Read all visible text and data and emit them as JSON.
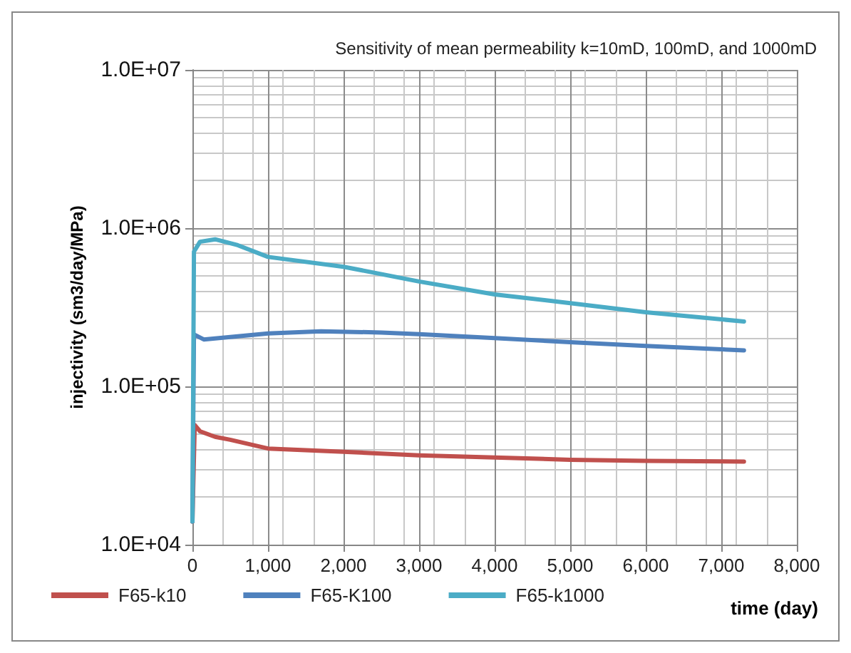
{
  "chart_data": {
    "type": "line",
    "title": "Sensitivity of mean permeability k=10mD, 100mD, and 1000mD",
    "xlabel": "time (day)",
    "ylabel": "injectivity (sm3/day/MPa)",
    "series": [
      {
        "name": "F65-k10",
        "color": "#c0504d",
        "x": [
          0,
          30,
          100,
          300,
          500,
          1000,
          1500,
          2000,
          3000,
          4000,
          5000,
          6000,
          7300
        ],
        "values": [
          14000,
          57000,
          52000,
          48000,
          46000,
          40500,
          39500,
          38600,
          36700,
          35500,
          34400,
          33800,
          33500
        ]
      },
      {
        "name": "F65-K100",
        "color": "#4f81bd",
        "x": [
          0,
          20,
          150,
          500,
          1000,
          1700,
          2500,
          3000,
          4000,
          5000,
          6000,
          7300
        ],
        "values": [
          14000,
          213000,
          198000,
          205000,
          216000,
          223000,
          219000,
          214000,
          202000,
          190000,
          180000,
          169000
        ]
      },
      {
        "name": "F65-k1000",
        "color": "#4bacc6",
        "x": [
          0,
          20,
          100,
          300,
          600,
          1000,
          2000,
          3000,
          4000,
          5000,
          6000,
          7300
        ],
        "values": [
          14000,
          710000,
          820000,
          850000,
          780000,
          658000,
          570000,
          460000,
          381000,
          336000,
          294000,
          257000
        ]
      }
    ],
    "xlim": [
      0,
      8000
    ],
    "xticks": [
      {
        "value": 0,
        "label": "0"
      },
      {
        "value": 1000,
        "label": "1,000"
      },
      {
        "value": 2000,
        "label": "2,000"
      },
      {
        "value": 3000,
        "label": "3,000"
      },
      {
        "value": 4000,
        "label": "4,000"
      },
      {
        "value": 5000,
        "label": "5,000"
      },
      {
        "value": 6000,
        "label": "6,000"
      },
      {
        "value": 7000,
        "label": "7,000"
      },
      {
        "value": 8000,
        "label": "8,000"
      }
    ],
    "ylim": [
      10000,
      10000000
    ],
    "yticks": [
      {
        "value": 10000,
        "label": "1.0E+04"
      },
      {
        "value": 100000,
        "label": "1.0E+05"
      },
      {
        "value": 1000000,
        "label": "1.0E+06"
      },
      {
        "value": 10000000,
        "label": "1.0E+07"
      }
    ],
    "log": "y",
    "grid": true,
    "legend": "bottom",
    "marker": "none",
    "line_style": "solid"
  }
}
